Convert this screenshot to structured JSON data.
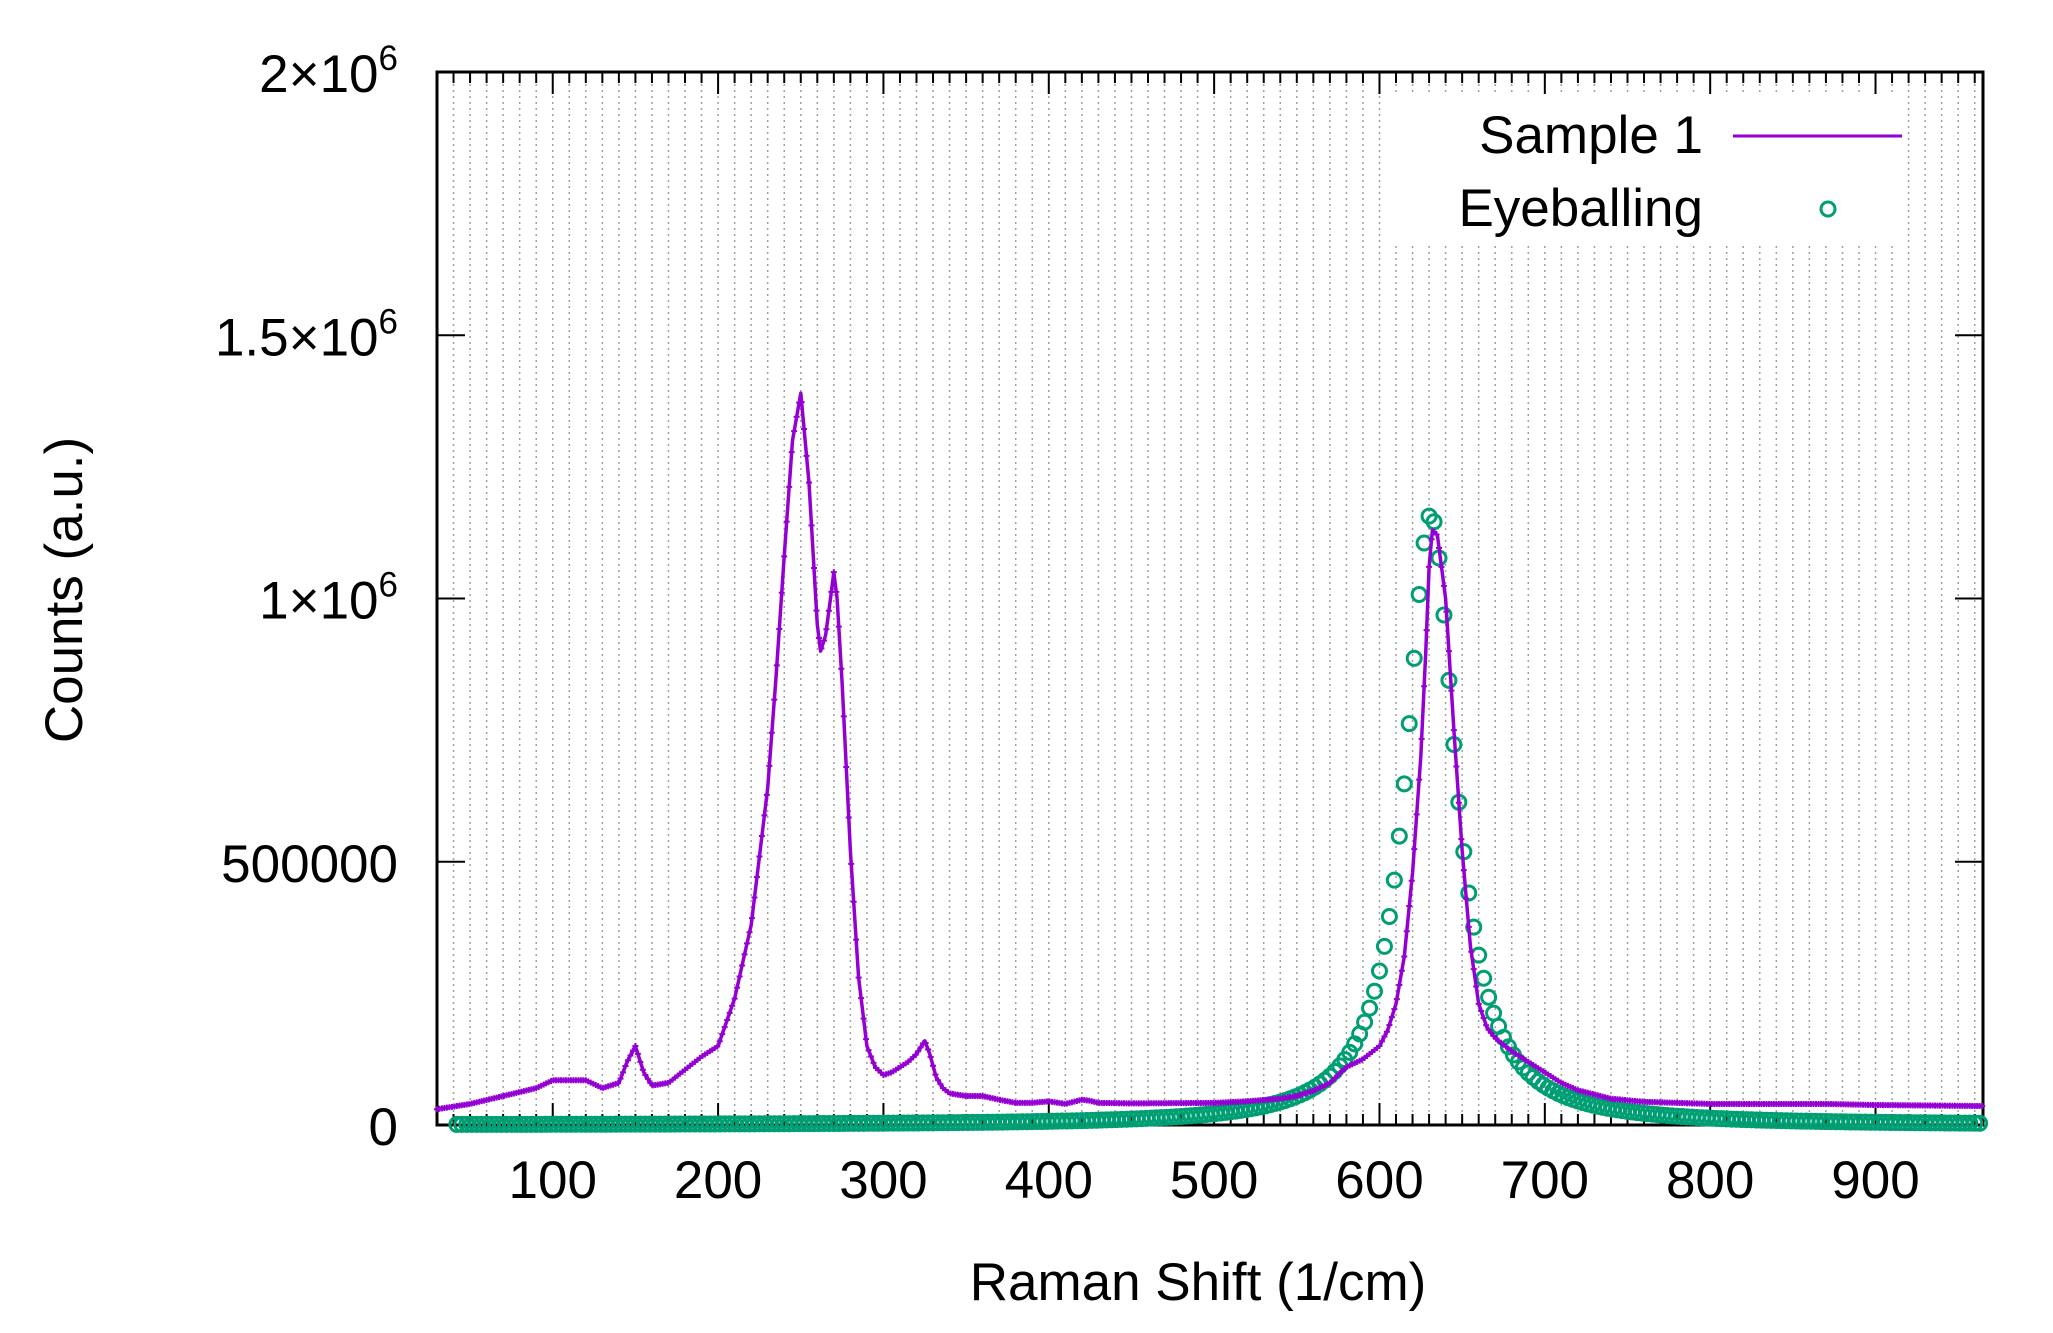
{
  "chart_data": {
    "type": "line",
    "title": "",
    "xlabel": "Raman Shift (1/cm)",
    "ylabel": "Counts (a.u.)",
    "xlim": [
      30,
      965
    ],
    "ylim": [
      0,
      2000000
    ],
    "x_ticks": [
      100,
      200,
      300,
      400,
      500,
      600,
      700,
      800,
      900
    ],
    "x_tick_labels": [
      "100",
      "200",
      "300",
      "400",
      "500",
      "600",
      "700",
      "800",
      "900"
    ],
    "y_ticks": [
      0,
      500000,
      1000000,
      1500000,
      2000000
    ],
    "y_tick_labels": [
      {
        "base": "0",
        "exp": ""
      },
      {
        "base": "500000",
        "exp": ""
      },
      {
        "base": "1×10",
        "exp": "6"
      },
      {
        "base": "1.5×10",
        "exp": "6"
      },
      {
        "base": "2×10",
        "exp": "6"
      }
    ],
    "grid": {
      "x_minor_step": 10,
      "style": "dotted vertical"
    },
    "legend": {
      "position": "top-right"
    },
    "series": [
      {
        "name": "Sample 1",
        "style": "line-points",
        "color": "#9400d3",
        "x": [
          30,
          50,
          70,
          90,
          100,
          110,
          120,
          130,
          140,
          145,
          150,
          155,
          160,
          170,
          180,
          190,
          200,
          210,
          220,
          230,
          235,
          240,
          245,
          250,
          255,
          260,
          262,
          265,
          268,
          270,
          272,
          275,
          280,
          285,
          290,
          295,
          300,
          305,
          310,
          315,
          320,
          325,
          328,
          332,
          336,
          340,
          350,
          360,
          370,
          380,
          390,
          400,
          410,
          420,
          425,
          430,
          450,
          500,
          520,
          540,
          550,
          560,
          570,
          580,
          590,
          600,
          605,
          610,
          615,
          620,
          625,
          628,
          630,
          632,
          635,
          640,
          645,
          650,
          655,
          660,
          665,
          670,
          680,
          690,
          700,
          710,
          720,
          740,
          760,
          800,
          850,
          870,
          900,
          965
        ],
        "y": [
          30000,
          40000,
          55000,
          70000,
          85000,
          85000,
          85000,
          70000,
          80000,
          120000,
          150000,
          100000,
          75000,
          80000,
          105000,
          130000,
          150000,
          240000,
          380000,
          640000,
          850000,
          1080000,
          1300000,
          1390000,
          1220000,
          950000,
          900000,
          930000,
          1000000,
          1050000,
          1000000,
          840000,
          520000,
          280000,
          150000,
          110000,
          95000,
          100000,
          110000,
          120000,
          135000,
          160000,
          135000,
          90000,
          70000,
          60000,
          55000,
          55000,
          48000,
          42000,
          42000,
          45000,
          40000,
          48000,
          46000,
          42000,
          41000,
          42000,
          45000,
          50000,
          55000,
          65000,
          80000,
          110000,
          125000,
          150000,
          180000,
          230000,
          320000,
          480000,
          700000,
          900000,
          1060000,
          1130000,
          1120000,
          1000000,
          750000,
          520000,
          340000,
          230000,
          185000,
          165000,
          140000,
          120000,
          100000,
          80000,
          66000,
          50000,
          44000,
          40000,
          40000,
          40000,
          38000,
          36000
        ]
      },
      {
        "name": "Eyeballing",
        "style": "points",
        "color": "#009e73",
        "model": {
          "kind": "lorentzian",
          "center": 631,
          "height": 1160000,
          "hwhm": 18,
          "step": 3
        }
      }
    ]
  }
}
